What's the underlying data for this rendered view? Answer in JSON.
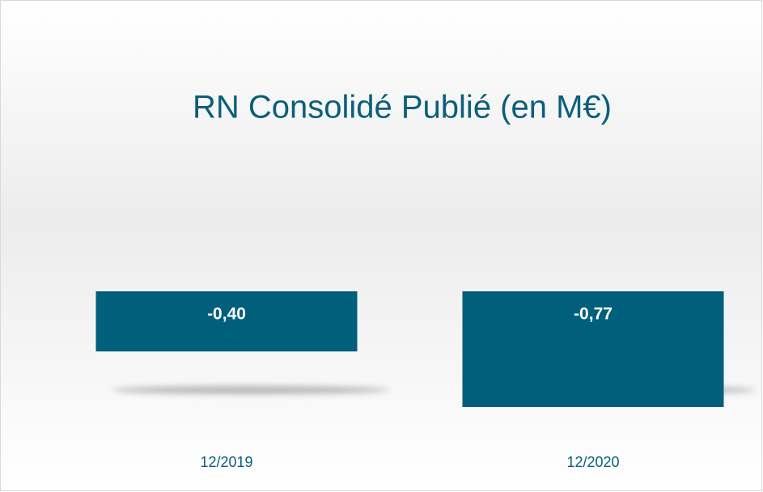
{
  "chart_data": {
    "type": "bar",
    "title": "RN Consolidé Publié (en M€)",
    "categories": [
      "12/2019",
      "12/2020"
    ],
    "values": [
      -0.4,
      -0.77
    ],
    "value_labels": [
      "-0,40",
      "-0,77"
    ],
    "color": "#005f7b"
  }
}
